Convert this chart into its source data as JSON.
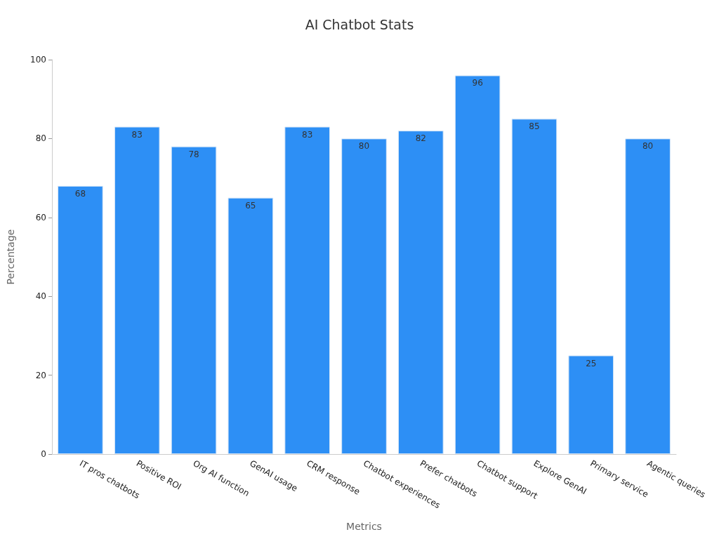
{
  "chart_data": {
    "type": "bar",
    "title": "AI Chatbot Stats",
    "xlabel": "Metrics",
    "ylabel": "Percentage",
    "categories": [
      "IT pros chatbots",
      "Positive ROI",
      "Org AI function",
      "GenAI usage",
      "CRM response",
      "Chatbot experiences",
      "Prefer chatbots",
      "Chatbot support",
      "Explore GenAI",
      "Primary service",
      "Agentic queries"
    ],
    "values": [
      68,
      83,
      78,
      65,
      83,
      80,
      82,
      96,
      85,
      25,
      80
    ],
    "color": "#2d8ff5",
    "ylim": [
      0,
      100
    ],
    "yticks": [
      0,
      20,
      40,
      60,
      80,
      100
    ],
    "grid": false,
    "data_labels": true
  }
}
